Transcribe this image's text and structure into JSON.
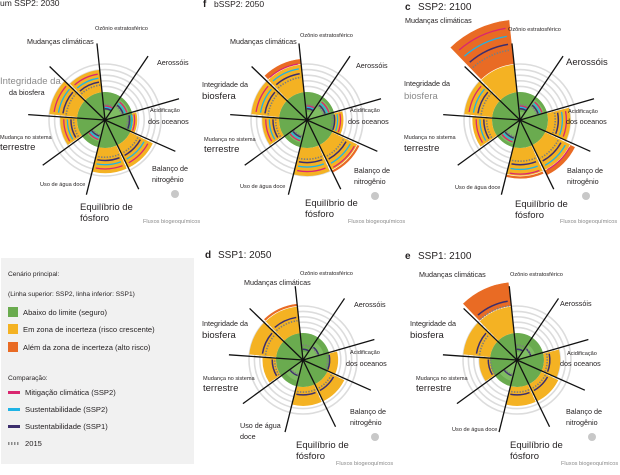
{
  "panels": [
    {
      "letter": "",
      "title": "um SSP2: 2030"
    },
    {
      "letter": "f",
      "title": "bSSP2: 2050"
    },
    {
      "letter": "c",
      "title": "SSP2: 2100"
    },
    {
      "letter": "d",
      "title": "SSP1: 2050"
    },
    {
      "letter": "e",
      "title": "SSP1: 2100"
    }
  ],
  "boundary_labels": {
    "ozone": "Ozônio estratosférico",
    "aerosols": "Aerossóis",
    "acid_line1": "Acidificação",
    "acid_line2": "dos oceanos",
    "nitro_line1": "Balanço de",
    "nitro_line2": "nitrogênio",
    "flows": "Fluxos biogeoquímicos",
    "phos_line1": "Equilíbrio de",
    "phos_line2": "fósforo",
    "water": "Uso de água doce",
    "water_line1": "Uso de água",
    "water_line2": "doce",
    "land_line1": "Mudança no sistema",
    "land_line2": "terrestre",
    "bio_line1": "Integridade da",
    "bio_line2": "biosfera",
    "bio_a_line2": "da biosfera",
    "climate": "Mudanças climáticas"
  },
  "legend": {
    "heading1": "Cenário principal:",
    "heading2": "(Linha superior: SSP2, linha inferior: SSP1)",
    "zones": [
      {
        "label": "Abaixo do limite (seguro)",
        "color": "#6aab4f"
      },
      {
        "label": "Em zona de incerteza (risco crescente)",
        "color": "#f4b223"
      },
      {
        "label": "Além da zona de incerteza (alto risco)",
        "color": "#e96b24"
      }
    ],
    "comparison_title": "Comparação:",
    "lines": [
      {
        "label": "Mitigação climática (SSP2)",
        "color": "#d9266f"
      },
      {
        "label": "Sustentabilidade (SSP2)",
        "color": "#1fb3e5"
      },
      {
        "label": "Sustentabilidade (SSP1)",
        "color": "#3c2e6d"
      }
    ],
    "baseline_label": "2015"
  },
  "colors": {
    "safe": "#6aab4f",
    "uncertain": "#f4b223",
    "high_risk": "#e96b24",
    "mitigation": "#d9266f",
    "sust_ssp2": "#1fb3e5",
    "sust_ssp1": "#3c2e6d",
    "ring": "#dcdcdc",
    "spoke": "#111111"
  },
  "chart_data": {
    "type": "polar-area",
    "boundaries": [
      "Mudanças climáticas",
      "Ozônio estratosférico",
      "Aerossóis",
      "Acidificação dos oceanos",
      "Balanço de nitrogênio",
      "Equilíbrio de fósforo",
      "Uso de água doce",
      "Mudança no sistema terrestre",
      "Integridade da biosfera"
    ],
    "scale_note": "1.0 = planetary boundary; 2.0 = upper end of zone of uncertainty",
    "series": [
      {
        "name": "SSP2: 2030",
        "values": [
          1.8,
          0.35,
          0.9,
          1.15,
          1.9,
          1.9,
          0.8,
          1.6,
          2.0
        ]
      },
      {
        "name": "SSP2: 2050",
        "values": [
          2.2,
          0.3,
          0.9,
          1.3,
          2.1,
          2.0,
          0.85,
          1.6,
          2.0
        ]
      },
      {
        "name": "SSP2: 2100",
        "values": [
          3.6,
          0.3,
          0.9,
          1.8,
          2.2,
          2.1,
          0.9,
          1.7,
          2.0
        ]
      },
      {
        "name": "SSP1: 2050",
        "values": [
          2.1,
          0.3,
          0.8,
          1.3,
          1.7,
          1.7,
          0.8,
          1.5,
          2.0
        ]
      },
      {
        "name": "SSP1: 2100",
        "values": [
          2.9,
          0.3,
          0.7,
          1.6,
          1.7,
          1.7,
          0.8,
          1.4,
          2.0
        ]
      }
    ]
  }
}
